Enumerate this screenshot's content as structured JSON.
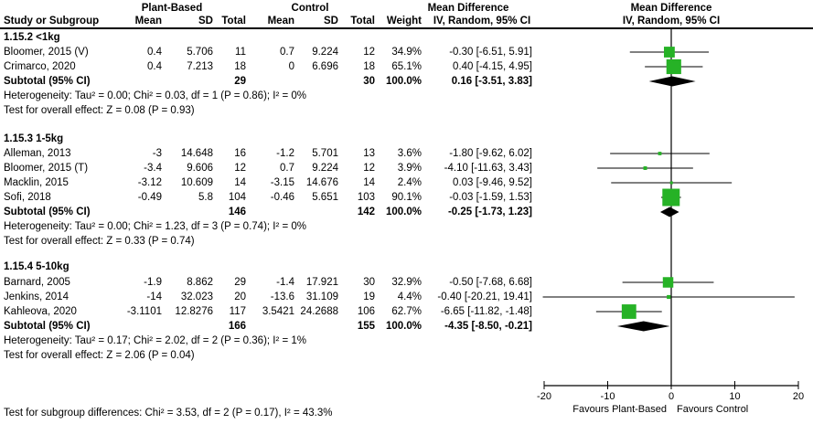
{
  "header": {
    "group1": "Plant-Based",
    "group2": "Control",
    "study": "Study or Subgroup",
    "mean1": "Mean",
    "sd1": "SD",
    "total1": "Total",
    "mean2": "Mean",
    "sd2": "SD",
    "total2": "Total",
    "weight": "Weight",
    "md1": "Mean Difference",
    "md2": "Mean Difference",
    "ci1": "IV, Random, 95% CI",
    "ci2": "IV, Random, 95% CI"
  },
  "footer": "Test for subgroup differences: Chi² = 3.53, df = 2 (P = 0.17), I² = 43.3%",
  "colors": {
    "square": "#26b226",
    "diamond": "#000000",
    "line": "#000000",
    "text": "#000000"
  },
  "chart_data": {
    "type": "forest",
    "effect_measure": "Mean Difference",
    "model": "IV, Random, 95% CI",
    "axis": {
      "min": -20,
      "max": 20,
      "ticks": [
        -20,
        -10,
        0,
        10,
        20
      ],
      "favours_left": "Favours Plant-Based",
      "favours_right": "Favours Control"
    },
    "subgroups": [
      {
        "label": "1.15.2 <1kg",
        "studies": [
          {
            "name": "Bloomer, 2015 (V)",
            "mean1": "0.4",
            "sd1": "5.706",
            "n1": "11",
            "mean2": "0.7",
            "sd2": "9.224",
            "n2": "12",
            "weight": "34.9%",
            "weight_pct": 34.9,
            "md": -0.3,
            "lo": -6.51,
            "hi": 5.91,
            "md_text": "-0.30 [-6.51, 5.91]"
          },
          {
            "name": "Crimarco, 2020",
            "mean1": "0.4",
            "sd1": "7.213",
            "n1": "18",
            "mean2": "0",
            "sd2": "6.696",
            "n2": "18",
            "weight": "65.1%",
            "weight_pct": 65.1,
            "md": 0.4,
            "lo": -4.15,
            "hi": 4.95,
            "md_text": "0.40 [-4.15, 4.95]"
          }
        ],
        "subtotal": {
          "label": "Subtotal (95% CI)",
          "n1": "29",
          "n2": "30",
          "weight": "100.0%",
          "md": 0.16,
          "lo": -3.51,
          "hi": 3.83,
          "md_text": "0.16 [-3.51, 3.83]"
        },
        "heterogeneity": "Heterogeneity: Tau² = 0.00; Chi² = 0.03, df = 1 (P = 0.86); I² = 0%",
        "overall_effect": "Test for overall effect: Z = 0.08 (P = 0.93)"
      },
      {
        "label": "1.15.3 1-5kg",
        "studies": [
          {
            "name": "Alleman, 2013",
            "mean1": "-3",
            "sd1": "14.648",
            "n1": "16",
            "mean2": "-1.2",
            "sd2": "5.701",
            "n2": "13",
            "weight": "3.6%",
            "weight_pct": 3.6,
            "md": -1.8,
            "lo": -9.62,
            "hi": 6.02,
            "md_text": "-1.80 [-9.62, 6.02]"
          },
          {
            "name": "Bloomer, 2015 (T)",
            "mean1": "-3.4",
            "sd1": "9.606",
            "n1": "12",
            "mean2": "0.7",
            "sd2": "9.224",
            "n2": "12",
            "weight": "3.9%",
            "weight_pct": 3.9,
            "md": -4.1,
            "lo": -11.63,
            "hi": 3.43,
            "md_text": "-4.10 [-11.63, 3.43]"
          },
          {
            "name": "Macklin, 2015",
            "mean1": "-3.12",
            "sd1": "10.609",
            "n1": "14",
            "mean2": "-3.15",
            "sd2": "14.676",
            "n2": "14",
            "weight": "2.4%",
            "weight_pct": 2.4,
            "md": 0.03,
            "lo": -9.46,
            "hi": 9.52,
            "md_text": "0.03 [-9.46, 9.52]"
          },
          {
            "name": "Sofi, 2018",
            "mean1": "-0.49",
            "sd1": "5.8",
            "n1": "104",
            "mean2": "-0.46",
            "sd2": "5.651",
            "n2": "103",
            "weight": "90.1%",
            "weight_pct": 90.1,
            "md": -0.03,
            "lo": -1.59,
            "hi": 1.53,
            "md_text": "-0.03 [-1.59, 1.53]"
          }
        ],
        "subtotal": {
          "label": "Subtotal (95% CI)",
          "n1": "146",
          "n2": "142",
          "weight": "100.0%",
          "md": -0.25,
          "lo": -1.73,
          "hi": 1.23,
          "md_text": "-0.25 [-1.73, 1.23]"
        },
        "heterogeneity": "Heterogeneity: Tau² = 0.00; Chi² = 1.23, df = 3 (P = 0.74); I² = 0%",
        "overall_effect": "Test for overall effect: Z = 0.33 (P = 0.74)"
      },
      {
        "label": "1.15.4 5-10kg",
        "studies": [
          {
            "name": "Barnard, 2005",
            "mean1": "-1.9",
            "sd1": "8.862",
            "n1": "29",
            "mean2": "-1.4",
            "sd2": "17.921",
            "n2": "30",
            "weight": "32.9%",
            "weight_pct": 32.9,
            "md": -0.5,
            "lo": -7.68,
            "hi": 6.68,
            "md_text": "-0.50 [-7.68, 6.68]"
          },
          {
            "name": "Jenkins, 2014",
            "mean1": "-14",
            "sd1": "32.023",
            "n1": "20",
            "mean2": "-13.6",
            "sd2": "31.109",
            "n2": "19",
            "weight": "4.4%",
            "weight_pct": 4.4,
            "md": -0.4,
            "lo": -20.21,
            "hi": 19.41,
            "md_text": "-0.40 [-20.21, 19.41]"
          },
          {
            "name": "Kahleova, 2020",
            "mean1": "-3.1101",
            "sd1": "12.8276",
            "n1": "117",
            "mean2": "3.5421",
            "sd2": "24.2688",
            "n2": "106",
            "weight": "62.7%",
            "weight_pct": 62.7,
            "md": -6.65,
            "lo": -11.82,
            "hi": -1.48,
            "md_text": "-6.65 [-11.82, -1.48]"
          }
        ],
        "subtotal": {
          "label": "Subtotal (95% CI)",
          "n1": "166",
          "n2": "155",
          "weight": "100.0%",
          "md": -4.35,
          "lo": -8.5,
          "hi": -0.21,
          "md_text": "-4.35 [-8.50, -0.21]"
        },
        "heterogeneity": "Heterogeneity: Tau² = 0.17; Chi² = 2.02, df = 2 (P = 0.36); I² = 1%",
        "overall_effect": "Test for overall effect: Z = 2.06 (P = 0.04)"
      }
    ]
  }
}
